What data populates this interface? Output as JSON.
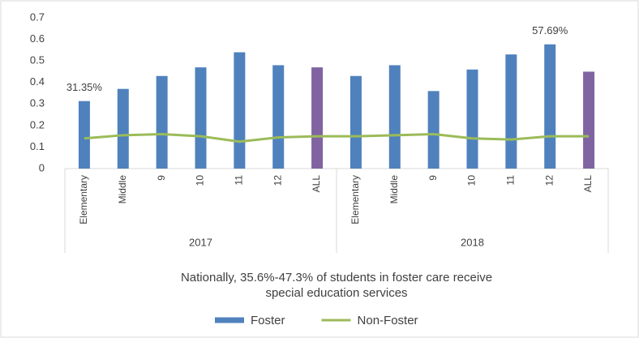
{
  "chart_data": {
    "type": "bar-line",
    "annotation": "Nationally, 35.6%-47.3% of students in foster care receive special education services",
    "groups": [
      {
        "name": "2017",
        "categories": [
          "Elementary",
          "Middle",
          "9",
          "10",
          "11",
          "12",
          "ALL"
        ]
      },
      {
        "name": "2018",
        "categories": [
          "Elementary",
          "Middle",
          "9",
          "10",
          "11",
          "12",
          "ALL"
        ]
      }
    ],
    "series": [
      {
        "name": "Foster",
        "type": "bar",
        "color": "#4f81bd",
        "colors": [
          "#4f81bd",
          "#4f81bd",
          "#4f81bd",
          "#4f81bd",
          "#4f81bd",
          "#4f81bd",
          "#8064a2",
          "#4f81bd",
          "#4f81bd",
          "#4f81bd",
          "#4f81bd",
          "#4f81bd",
          "#4f81bd",
          "#8064a2"
        ],
        "values": [
          0.3135,
          0.37,
          0.43,
          0.47,
          0.54,
          0.48,
          0.47,
          0.43,
          0.48,
          0.36,
          0.46,
          0.53,
          0.5769,
          0.45
        ],
        "value_labels": [
          "31.35%",
          null,
          null,
          null,
          null,
          null,
          null,
          null,
          null,
          null,
          null,
          null,
          "57.69%",
          null
        ]
      },
      {
        "name": "Non-Foster",
        "type": "line",
        "color": "#9bbb59",
        "values": [
          0.14,
          0.155,
          0.16,
          0.15,
          0.125,
          0.145,
          0.15,
          0.15,
          0.155,
          0.16,
          0.14,
          0.135,
          0.15,
          0.15
        ]
      }
    ],
    "ylim": [
      0,
      0.7
    ],
    "yticks": [
      0,
      0.1,
      0.2,
      0.3,
      0.4,
      0.5,
      0.6,
      0.7
    ],
    "grid": false,
    "legend": "bottom"
  }
}
